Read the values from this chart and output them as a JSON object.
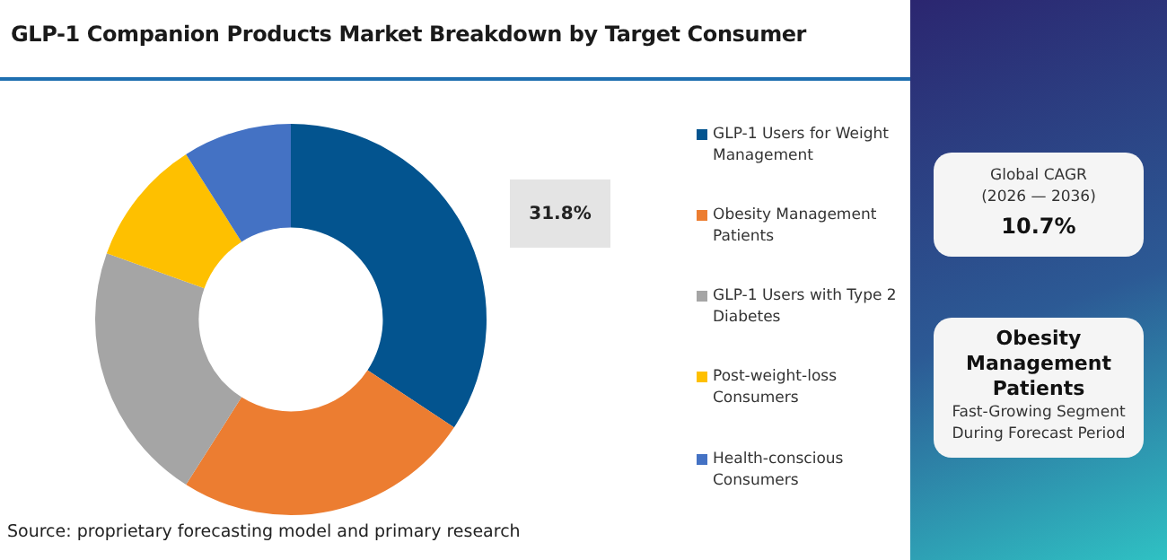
{
  "chart_data": {
    "type": "donut",
    "title": "GLP-1 Companion Products Market Breakdown by Target Consumer",
    "categories": [
      "GLP-1 Users for Weight Management",
      "Obesity Management Patients",
      "GLP-1 Users with Type 2 Diabetes",
      "Post-weight-loss Consumers",
      "Health-conscious Consumers"
    ],
    "values": [
      34.3,
      24.7,
      21.5,
      10.5,
      9.0
    ],
    "colors": [
      "#03548f",
      "#ec7d31",
      "#a5a5a5",
      "#fec000",
      "#4472c4"
    ],
    "legend": "right",
    "annotations": [
      "31.8%",
      "Global CAGR",
      "(2026 — 2036)",
      "10.7%",
      "Obesity Management Patients",
      "Fast-Growing Segment During Forecast Period",
      "Source: proprietary forecasting model and primary research"
    ]
  }
}
